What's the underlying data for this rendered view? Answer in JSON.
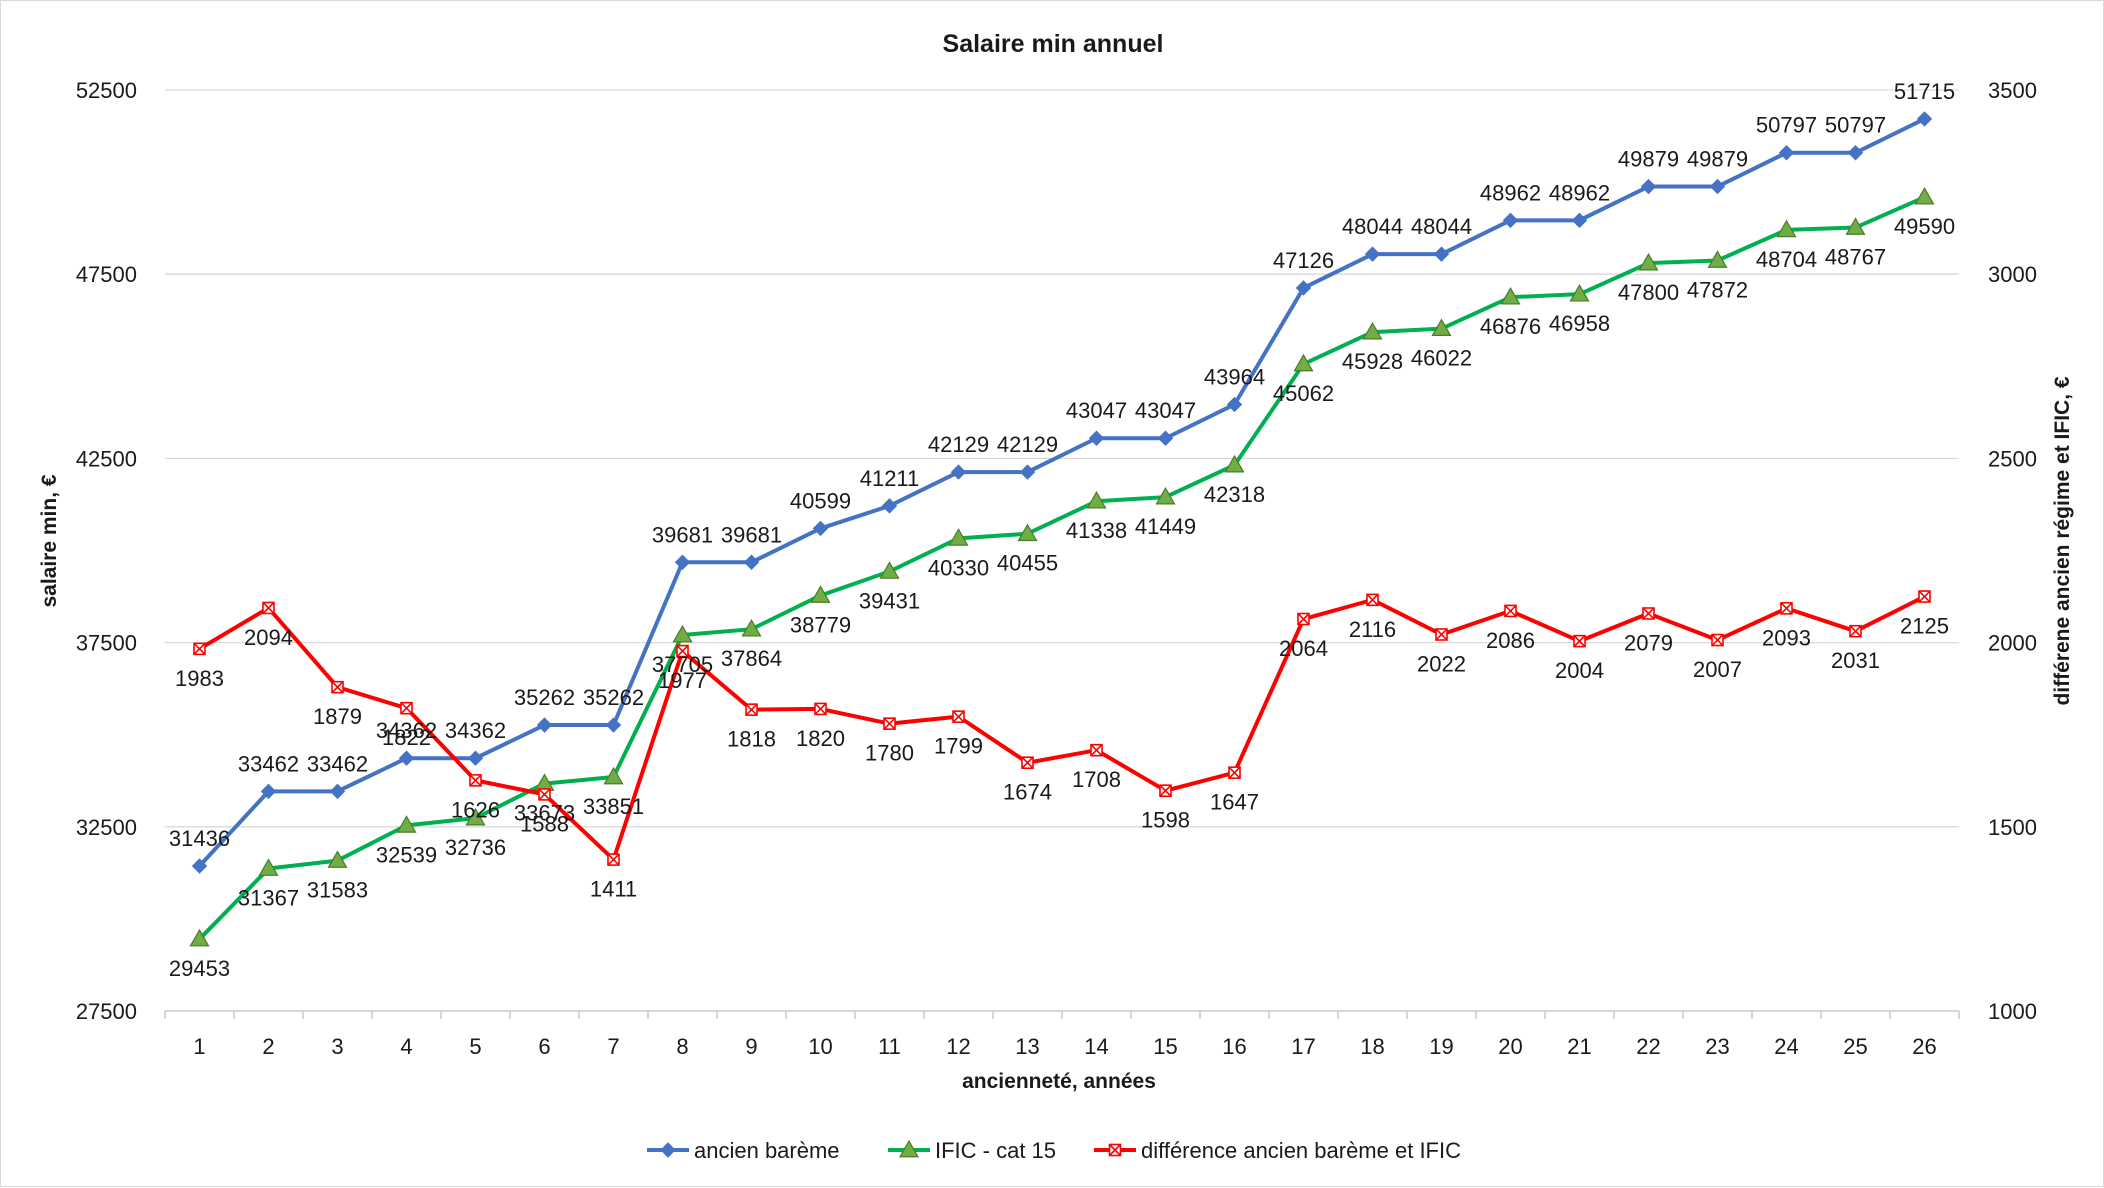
{
  "chart_data": {
    "type": "line",
    "title": "Salaire min annuel",
    "xlabel": "ancienneté, années",
    "ylabel": "salaire min, €",
    "y2label": "différene ancien régime et IFIC, €",
    "categories": [
      "1",
      "2",
      "3",
      "4",
      "5",
      "6",
      "7",
      "8",
      "9",
      "10",
      "11",
      "12",
      "13",
      "14",
      "15",
      "16",
      "17",
      "18",
      "19",
      "20",
      "21",
      "22",
      "23",
      "24",
      "25",
      "26"
    ],
    "ylim": [
      27500,
      52500
    ],
    "yticks": [
      27500,
      32500,
      37500,
      42500,
      47500,
      52500
    ],
    "y2lim": [
      1000,
      3500
    ],
    "y2ticks": [
      1000,
      1500,
      2000,
      2500,
      3000,
      3500
    ],
    "grid": true,
    "legend_position": "bottom",
    "series": [
      {
        "name": "ancien barème",
        "axis": "left",
        "color": "#4472c4",
        "marker": "diamond",
        "label_position": "above",
        "values": [
          31436,
          33462,
          33462,
          34362,
          34362,
          35262,
          35262,
          39681,
          39681,
          40599,
          41211,
          42129,
          42129,
          43047,
          43047,
          43964,
          47126,
          48044,
          48044,
          48962,
          48962,
          49879,
          49879,
          50797,
          50797,
          51715
        ]
      },
      {
        "name": "IFIC - cat 15",
        "axis": "left",
        "color": "#00b050",
        "marker": "triangle",
        "marker_fill": "#70ad47",
        "label_position": "below",
        "values": [
          29453,
          31367,
          31583,
          32539,
          32736,
          33673,
          33851,
          37705,
          37864,
          38779,
          39431,
          40330,
          40455,
          41338,
          41449,
          42318,
          45062,
          45928,
          46022,
          46876,
          46958,
          47800,
          47872,
          48704,
          48767,
          49590
        ]
      },
      {
        "name": "différence ancien barème et IFIC",
        "axis": "right",
        "color": "#ff0000",
        "marker": "x-square",
        "label_position": "below",
        "values": [
          1983,
          2094,
          1879,
          1822,
          1626,
          1588,
          1411,
          1977,
          1818,
          1820,
          1780,
          1799,
          1674,
          1708,
          1598,
          1647,
          2064,
          2116,
          2022,
          2086,
          2004,
          2079,
          2007,
          2093,
          2031,
          2125
        ]
      }
    ]
  }
}
